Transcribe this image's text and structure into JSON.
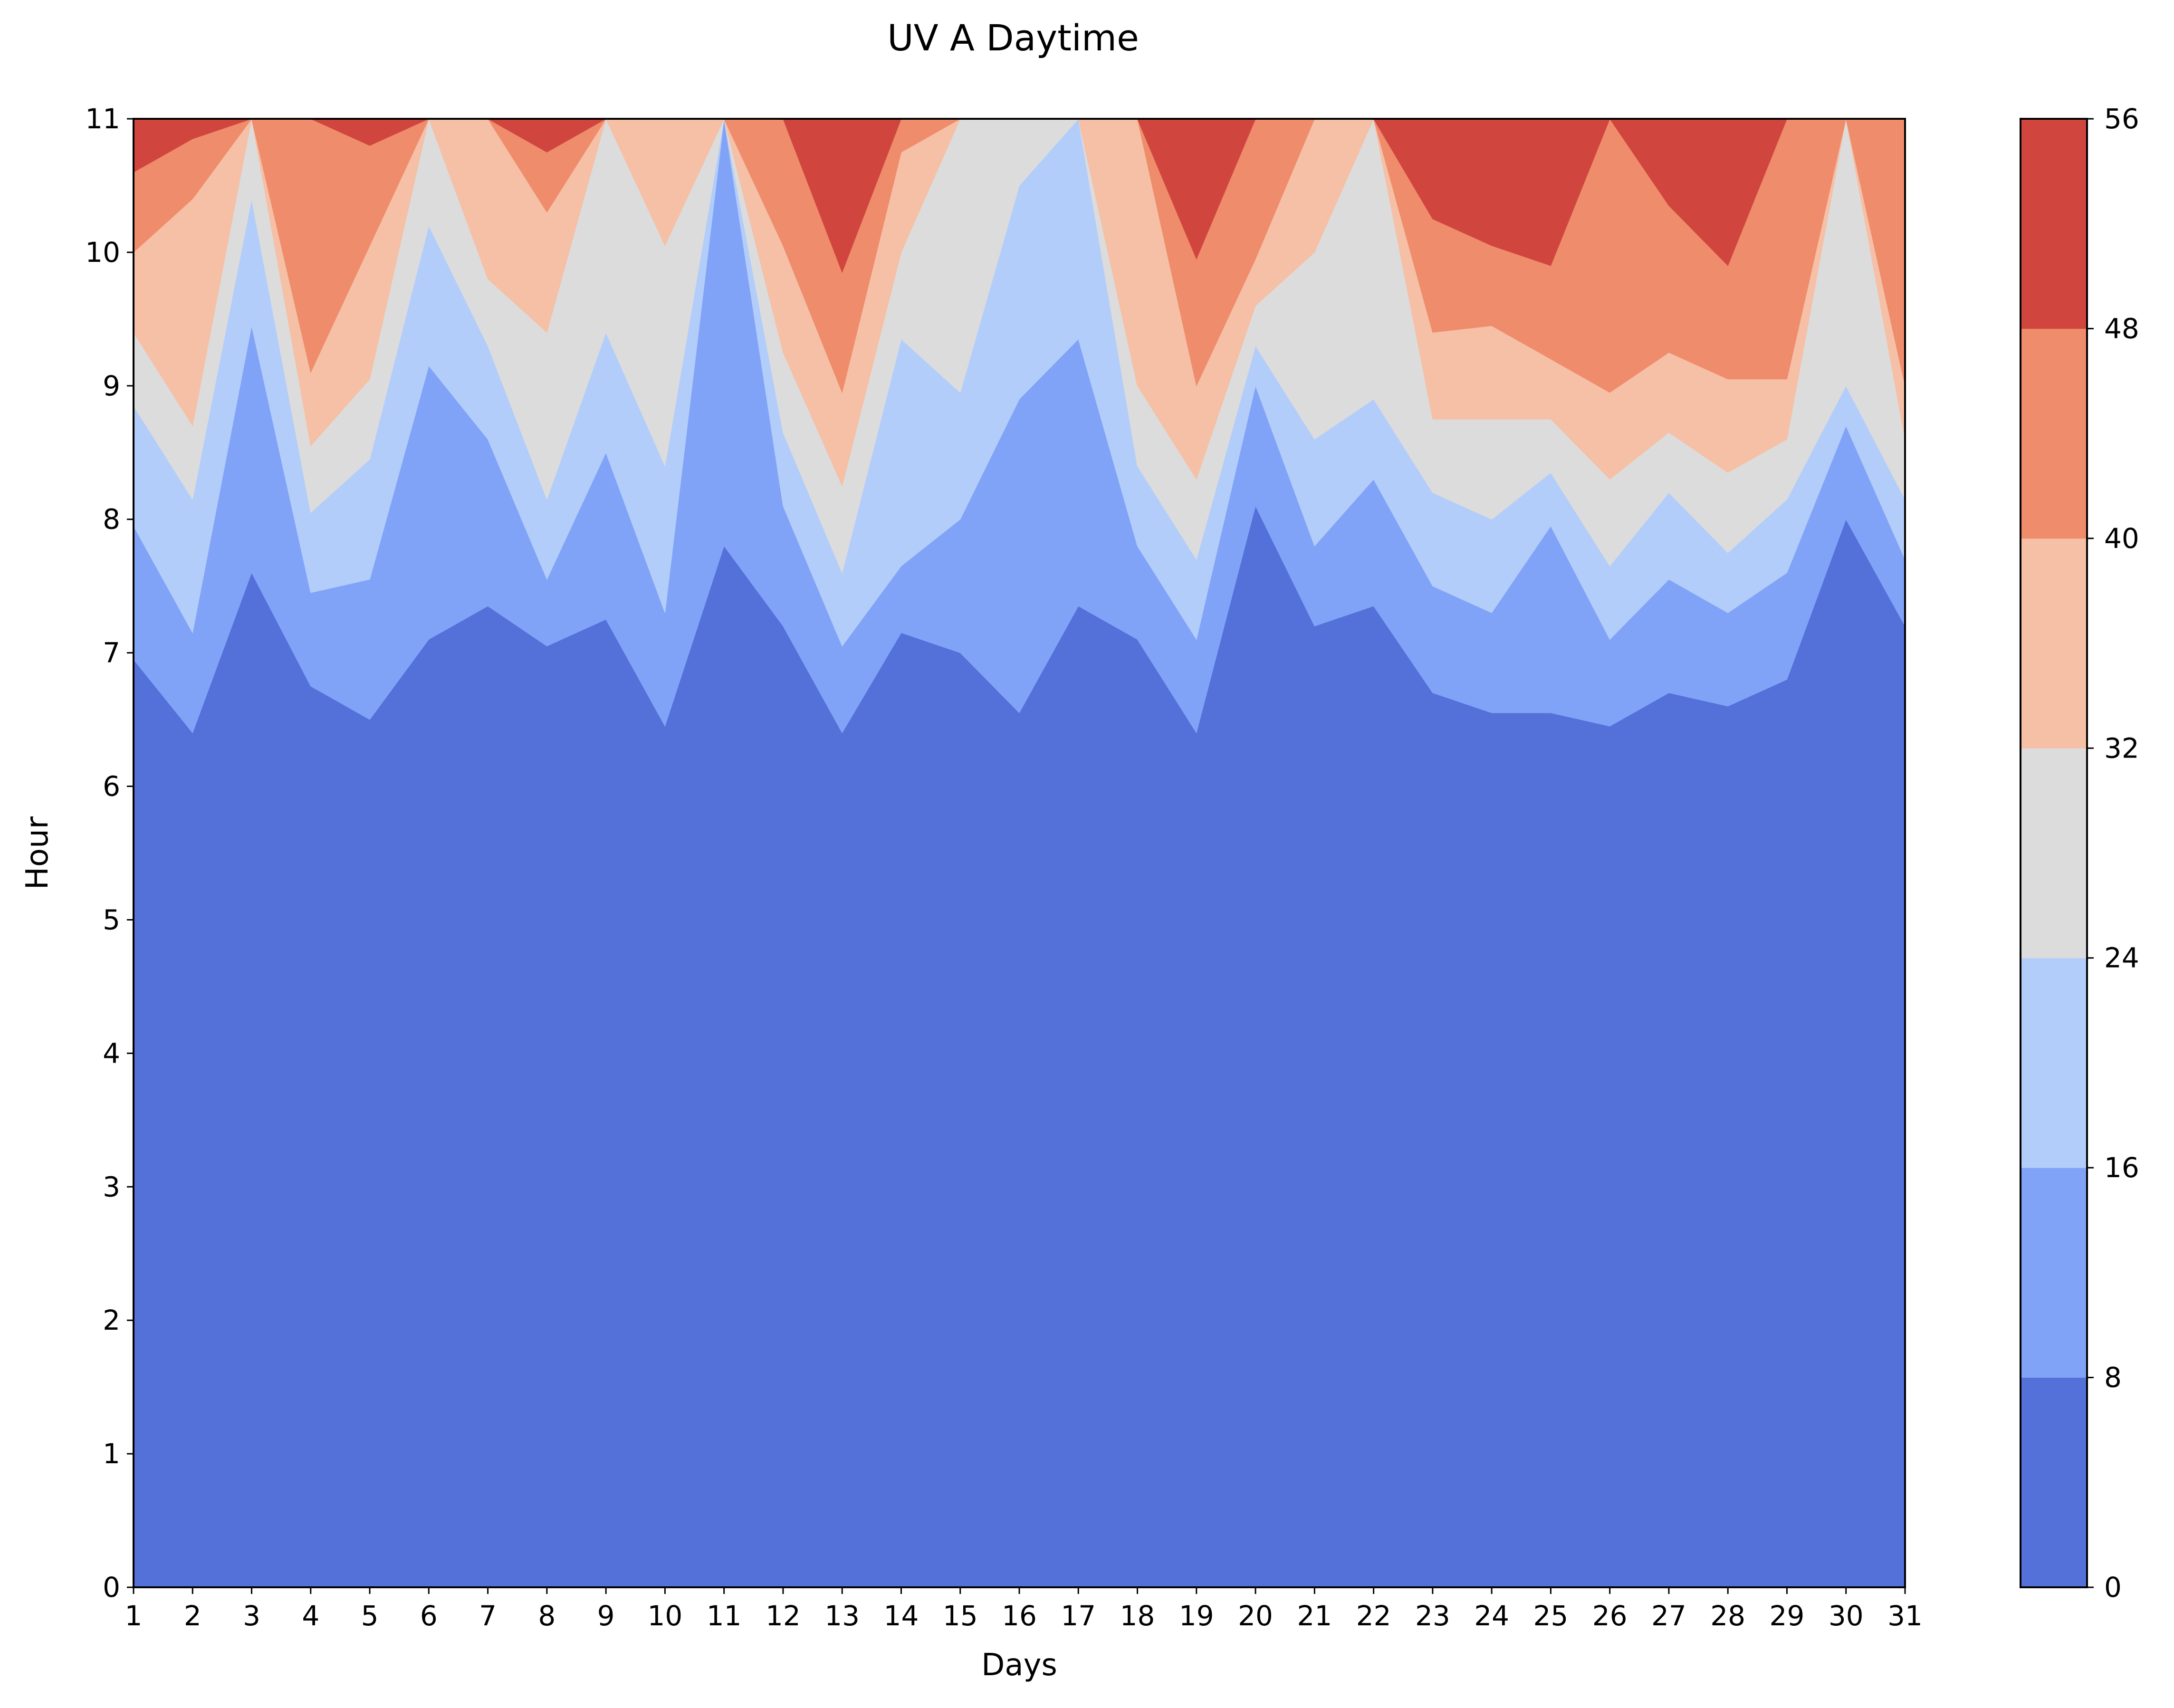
{
  "chart_data": {
    "type": "heatmap",
    "subtype": "filled-contour",
    "title": "UV A Daytime",
    "xlabel": "Days",
    "ylabel": "Hour",
    "xlim": [
      1,
      31
    ],
    "ylim": [
      0,
      11
    ],
    "x_ticks": [
      "1",
      "2",
      "3",
      "4",
      "5",
      "6",
      "7",
      "8",
      "9",
      "10",
      "11",
      "12",
      "13",
      "14",
      "15",
      "16",
      "17",
      "18",
      "19",
      "20",
      "21",
      "22",
      "23",
      "24",
      "25",
      "26",
      "27",
      "28",
      "29",
      "30",
      "31"
    ],
    "y_ticks": [
      "0",
      "1",
      "2",
      "3",
      "4",
      "5",
      "6",
      "7",
      "8",
      "9",
      "10",
      "11"
    ],
    "colorbar": {
      "levels": [
        0,
        8,
        16,
        24,
        32,
        40,
        48,
        56
      ],
      "tick_labels": [
        "0",
        "8",
        "16",
        "24",
        "32",
        "40",
        "48",
        "56"
      ],
      "colors": [
        "#5470d9",
        "#80a3f7",
        "#b3cdfa",
        "#dcdcdc",
        "#f5c0a6",
        "#ef8c6c",
        "#d0463e"
      ],
      "colormap": "coolwarm"
    },
    "contour_boundaries": {
      "days": [
        1,
        2,
        3,
        4,
        5,
        6,
        7,
        8,
        9,
        10,
        11,
        12,
        13,
        14,
        15,
        16,
        17,
        18,
        19,
        20,
        21,
        22,
        23,
        24,
        25,
        26,
        27,
        28,
        29,
        30,
        31
      ],
      "level_8": [
        6.95,
        6.4,
        7.6,
        6.75,
        6.5,
        7.1,
        7.35,
        7.05,
        7.25,
        6.45,
        7.8,
        7.2,
        6.4,
        7.15,
        7.0,
        6.55,
        7.35,
        7.1,
        6.4,
        8.1,
        7.2,
        7.35,
        6.7,
        6.55,
        6.55,
        6.45,
        6.7,
        6.6,
        6.8,
        8.0,
        7.2
      ],
      "level_16": [
        7.95,
        7.15,
        9.45,
        7.45,
        7.55,
        9.15,
        8.6,
        7.55,
        8.5,
        7.3,
        11.0,
        8.1,
        7.05,
        7.65,
        8.0,
        8.9,
        9.35,
        7.8,
        7.1,
        9.0,
        7.8,
        8.3,
        7.5,
        7.3,
        7.95,
        7.1,
        7.55,
        7.3,
        7.6,
        8.7,
        7.7
      ],
      "level_24": [
        8.85,
        8.15,
        10.4,
        8.05,
        8.45,
        10.2,
        9.3,
        8.15,
        9.4,
        8.4,
        11.0,
        8.65,
        7.6,
        9.35,
        8.95,
        10.5,
        11.0,
        8.4,
        7.7,
        9.3,
        8.6,
        8.9,
        8.2,
        8.0,
        8.35,
        7.65,
        8.2,
        7.75,
        8.15,
        9.0,
        8.15
      ],
      "level_32": [
        9.4,
        8.7,
        11.0,
        8.55,
        9.05,
        11.0,
        9.8,
        9.4,
        11.0,
        10.05,
        11.0,
        9.25,
        8.25,
        10.0,
        11.0,
        11.0,
        11.0,
        9.0,
        8.3,
        9.6,
        10.0,
        11.0,
        8.75,
        8.75,
        8.75,
        8.3,
        8.65,
        8.35,
        8.6,
        11.0,
        8.6
      ],
      "level_40": [
        10.0,
        10.4,
        11.0,
        9.1,
        10.05,
        11.0,
        11.0,
        10.3,
        11.0,
        11.0,
        11.0,
        10.05,
        8.95,
        10.75,
        11.0,
        11.0,
        11.0,
        11.0,
        9.0,
        9.95,
        11.0,
        11.0,
        9.4,
        9.45,
        9.2,
        8.95,
        9.25,
        9.05,
        9.05,
        11.0,
        9.0
      ],
      "level_48": [
        10.6,
        10.85,
        11.0,
        11.0,
        10.8,
        11.0,
        11.0,
        10.75,
        11.0,
        11.0,
        11.0,
        11.0,
        9.85,
        11.0,
        11.0,
        11.0,
        11.0,
        11.0,
        9.95,
        11.0,
        11.0,
        11.0,
        10.25,
        10.05,
        9.9,
        11.0,
        10.35,
        9.9,
        11.0,
        11.0,
        11.0
      ]
    }
  }
}
